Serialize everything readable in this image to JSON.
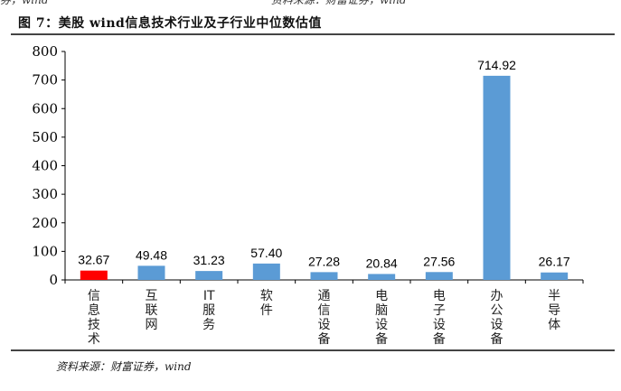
{
  "header_fragments": [
    "券，wind",
    "资料来源：财富证券，wind"
  ],
  "title": "图 7：美股 wind信息技术行业及子行业中位数估值",
  "source": "资料来源：财富证券，wind",
  "chart_data": {
    "type": "bar",
    "title": "",
    "xlabel": "",
    "ylabel": "",
    "ylim": [
      0,
      800
    ],
    "yticks": [
      0,
      100,
      200,
      300,
      400,
      500,
      600,
      700,
      800
    ],
    "grid": false,
    "categories": [
      "信息技术",
      "互联网",
      "IT服务",
      "软件",
      "通信设备",
      "电脑设备",
      "电子设备",
      "办公设备",
      "半导体"
    ],
    "values": [
      32.67,
      49.48,
      31.23,
      57.4,
      27.28,
      20.84,
      27.56,
      714.92,
      26.17
    ],
    "data_labels": [
      "32.67",
      "49.48",
      "31.23",
      "57.40",
      "27.28",
      "20.84",
      "27.56",
      "714.92",
      "26.17"
    ],
    "colors": [
      "#ff0000",
      "#5b9bd5",
      "#5b9bd5",
      "#5b9bd5",
      "#5b9bd5",
      "#5b9bd5",
      "#5b9bd5",
      "#5b9bd5",
      "#5b9bd5"
    ]
  }
}
